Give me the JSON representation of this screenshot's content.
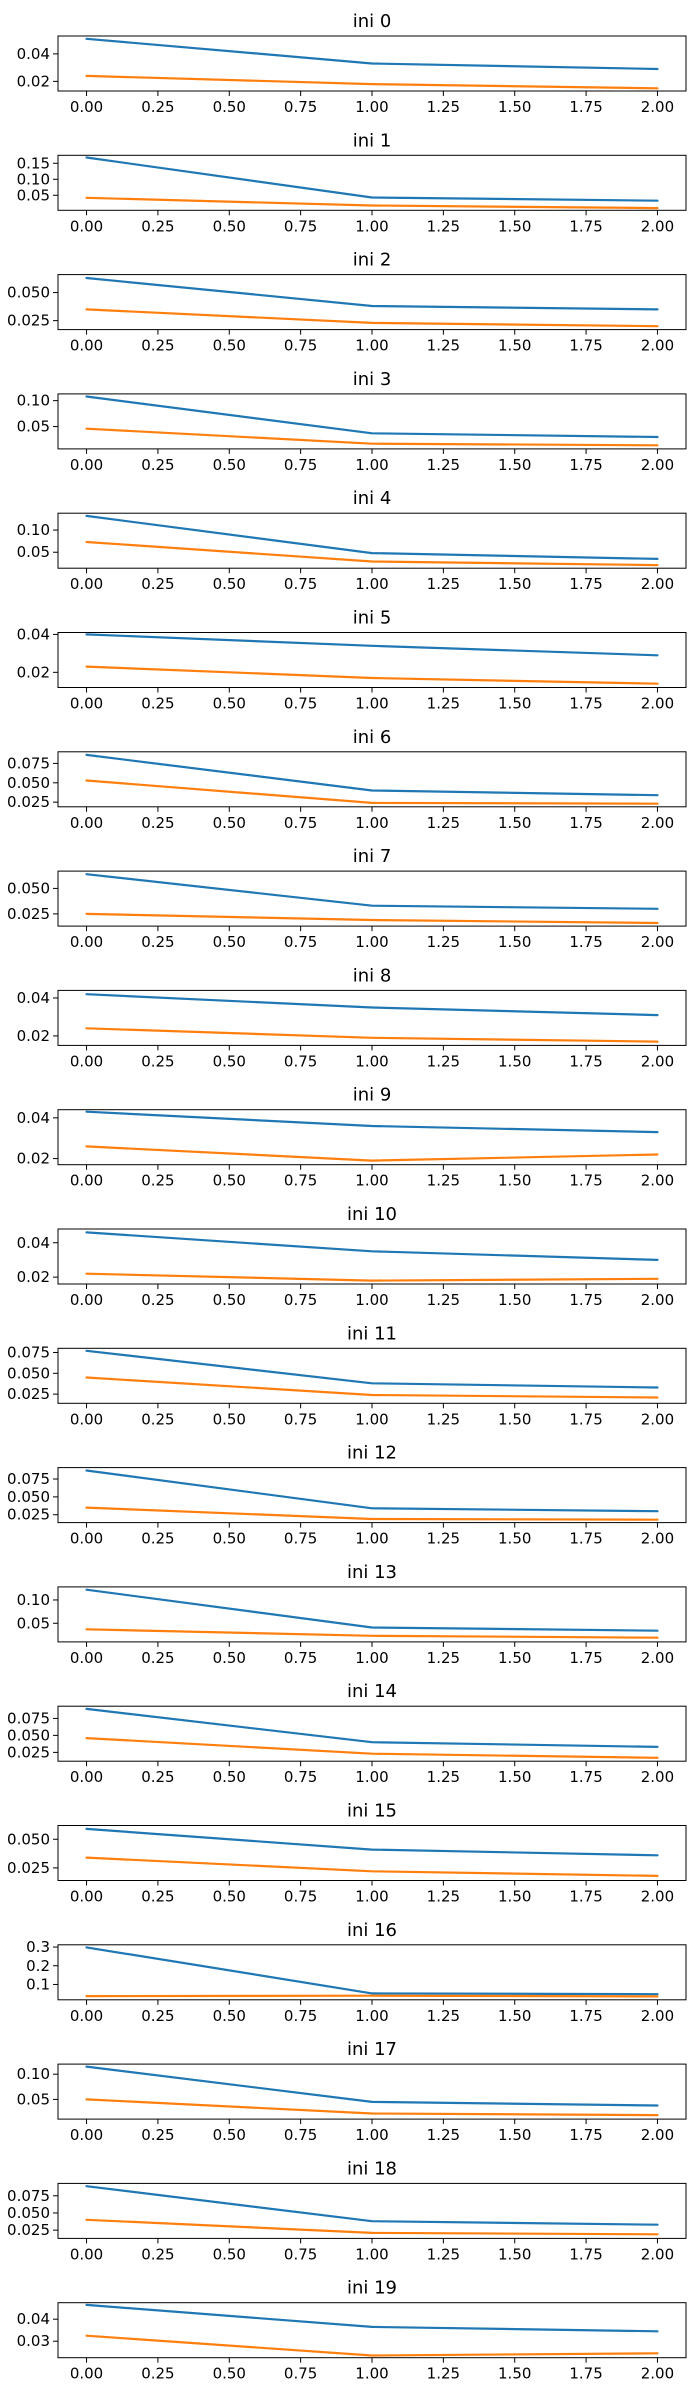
{
  "colors": {
    "series_a": "#1f77b4",
    "series_b": "#ff7f0e",
    "frame": "#000000"
  },
  "chart_data": [
    {
      "type": "line",
      "title": "ini 0",
      "x": [
        0,
        1,
        2
      ],
      "xlim": [
        -0.1,
        2.1
      ],
      "xticks": [
        "0.00",
        "0.25",
        "0.50",
        "0.75",
        "1.00",
        "1.25",
        "1.50",
        "1.75",
        "2.00"
      ],
      "ylim": [
        0.013,
        0.053
      ],
      "yticks": [
        "0.02",
        "0.04"
      ],
      "series": [
        {
          "values": [
            0.051,
            0.033,
            0.029
          ]
        },
        {
          "values": [
            0.024,
            0.018,
            0.015
          ]
        }
      ]
    },
    {
      "type": "line",
      "title": "ini 1",
      "x": [
        0,
        1,
        2
      ],
      "xlim": [
        -0.1,
        2.1
      ],
      "xticks": [
        "0.00",
        "0.25",
        "0.50",
        "0.75",
        "1.00",
        "1.25",
        "1.50",
        "1.75",
        "2.00"
      ],
      "ylim": [
        0.003,
        0.175
      ],
      "yticks": [
        "0.05",
        "0.10",
        "0.15"
      ],
      "series": [
        {
          "values": [
            0.168,
            0.043,
            0.033
          ]
        },
        {
          "values": [
            0.042,
            0.018,
            0.01
          ]
        }
      ]
    },
    {
      "type": "line",
      "title": "ini 2",
      "x": [
        0,
        1,
        2
      ],
      "xlim": [
        -0.1,
        2.1
      ],
      "xticks": [
        "0.00",
        "0.25",
        "0.50",
        "0.75",
        "1.00",
        "1.25",
        "1.50",
        "1.75",
        "2.00"
      ],
      "ylim": [
        0.017,
        0.066
      ],
      "yticks": [
        "0.025",
        "0.050"
      ],
      "series": [
        {
          "values": [
            0.063,
            0.038,
            0.035
          ]
        },
        {
          "values": [
            0.035,
            0.023,
            0.02
          ]
        }
      ]
    },
    {
      "type": "line",
      "title": "ini 3",
      "x": [
        0,
        1,
        2
      ],
      "xlim": [
        -0.1,
        2.1
      ],
      "xticks": [
        "0.00",
        "0.25",
        "0.50",
        "0.75",
        "1.00",
        "1.25",
        "1.50",
        "1.75",
        "2.00"
      ],
      "ylim": [
        0.007,
        0.113
      ],
      "yticks": [
        "0.05",
        "0.10"
      ],
      "series": [
        {
          "values": [
            0.108,
            0.037,
            0.03
          ]
        },
        {
          "values": [
            0.046,
            0.017,
            0.014
          ]
        }
      ]
    },
    {
      "type": "line",
      "title": "ini 4",
      "x": [
        0,
        1,
        2
      ],
      "xlim": [
        -0.1,
        2.1
      ],
      "xticks": [
        "0.00",
        "0.25",
        "0.50",
        "0.75",
        "1.00",
        "1.25",
        "1.50",
        "1.75",
        "2.00"
      ],
      "ylim": [
        0.014,
        0.138
      ],
      "yticks": [
        "0.05",
        "0.10"
      ],
      "series": [
        {
          "values": [
            0.132,
            0.048,
            0.035
          ]
        },
        {
          "values": [
            0.073,
            0.029,
            0.021
          ]
        }
      ]
    },
    {
      "type": "line",
      "title": "ini 5",
      "x": [
        0,
        1,
        2
      ],
      "xlim": [
        -0.1,
        2.1
      ],
      "xticks": [
        "0.00",
        "0.25",
        "0.50",
        "0.75",
        "1.00",
        "1.25",
        "1.50",
        "1.75",
        "2.00"
      ],
      "ylim": [
        0.012,
        0.041
      ],
      "yticks": [
        "0.02",
        "0.04"
      ],
      "series": [
        {
          "values": [
            0.04,
            0.034,
            0.029
          ]
        },
        {
          "values": [
            0.023,
            0.017,
            0.014
          ]
        }
      ]
    },
    {
      "type": "line",
      "title": "ini 6",
      "x": [
        0,
        1,
        2
      ],
      "xlim": [
        -0.1,
        2.1
      ],
      "xticks": [
        "0.00",
        "0.25",
        "0.50",
        "0.75",
        "1.00",
        "1.25",
        "1.50",
        "1.75",
        "2.00"
      ],
      "ylim": [
        0.019,
        0.09
      ],
      "yticks": [
        "0.025",
        "0.050",
        "0.075"
      ],
      "series": [
        {
          "values": [
            0.086,
            0.04,
            0.034
          ]
        },
        {
          "values": [
            0.053,
            0.024,
            0.023
          ]
        }
      ]
    },
    {
      "type": "line",
      "title": "ini 7",
      "x": [
        0,
        1,
        2
      ],
      "xlim": [
        -0.1,
        2.1
      ],
      "xticks": [
        "0.00",
        "0.25",
        "0.50",
        "0.75",
        "1.00",
        "1.25",
        "1.50",
        "1.75",
        "2.00"
      ],
      "ylim": [
        0.013,
        0.067
      ],
      "yticks": [
        "0.025",
        "0.050"
      ],
      "series": [
        {
          "values": [
            0.064,
            0.033,
            0.03
          ]
        },
        {
          "values": [
            0.025,
            0.019,
            0.016
          ]
        }
      ]
    },
    {
      "type": "line",
      "title": "ini 8",
      "x": [
        0,
        1,
        2
      ],
      "xlim": [
        -0.1,
        2.1
      ],
      "xticks": [
        "0.00",
        "0.25",
        "0.50",
        "0.75",
        "1.00",
        "1.25",
        "1.50",
        "1.75",
        "2.00"
      ],
      "ylim": [
        0.015,
        0.044
      ],
      "yticks": [
        "0.02",
        "0.04"
      ],
      "series": [
        {
          "values": [
            0.042,
            0.035,
            0.031
          ]
        },
        {
          "values": [
            0.024,
            0.019,
            0.017
          ]
        }
      ]
    },
    {
      "type": "line",
      "title": "ini 9",
      "x": [
        0,
        1,
        2
      ],
      "xlim": [
        -0.1,
        2.1
      ],
      "xticks": [
        "0.00",
        "0.25",
        "0.50",
        "0.75",
        "1.00",
        "1.25",
        "1.50",
        "1.75",
        "2.00"
      ],
      "ylim": [
        0.017,
        0.044
      ],
      "yticks": [
        "0.02",
        "0.04"
      ],
      "series": [
        {
          "values": [
            0.043,
            0.036,
            0.033
          ]
        },
        {
          "values": [
            0.026,
            0.019,
            0.022
          ]
        }
      ]
    },
    {
      "type": "line",
      "title": "ini 10",
      "x": [
        0,
        1,
        2
      ],
      "xlim": [
        -0.1,
        2.1
      ],
      "xticks": [
        "0.00",
        "0.25",
        "0.50",
        "0.75",
        "1.00",
        "1.25",
        "1.50",
        "1.75",
        "2.00"
      ],
      "ylim": [
        0.016,
        0.048
      ],
      "yticks": [
        "0.02",
        "0.04"
      ],
      "series": [
        {
          "values": [
            0.046,
            0.035,
            0.03
          ]
        },
        {
          "values": [
            0.022,
            0.018,
            0.019
          ]
        }
      ]
    },
    {
      "type": "line",
      "title": "ini 11",
      "x": [
        0,
        1,
        2
      ],
      "xlim": [
        -0.1,
        2.1
      ],
      "xticks": [
        "0.00",
        "0.25",
        "0.50",
        "0.75",
        "1.00",
        "1.25",
        "1.50",
        "1.75",
        "2.00"
      ],
      "ylim": [
        0.014,
        0.08
      ],
      "yticks": [
        "0.025",
        "0.050",
        "0.075"
      ],
      "series": [
        {
          "values": [
            0.077,
            0.038,
            0.033
          ]
        },
        {
          "values": [
            0.045,
            0.024,
            0.021
          ]
        }
      ]
    },
    {
      "type": "line",
      "title": "ini 12",
      "x": [
        0,
        1,
        2
      ],
      "xlim": [
        -0.1,
        2.1
      ],
      "xticks": [
        "0.00",
        "0.25",
        "0.50",
        "0.75",
        "1.00",
        "1.25",
        "1.50",
        "1.75",
        "2.00"
      ],
      "ylim": [
        0.014,
        0.091
      ],
      "yticks": [
        "0.025",
        "0.050",
        "0.075"
      ],
      "series": [
        {
          "values": [
            0.087,
            0.034,
            0.03
          ]
        },
        {
          "values": [
            0.035,
            0.019,
            0.018
          ]
        }
      ]
    },
    {
      "type": "line",
      "title": "ini 13",
      "x": [
        0,
        1,
        2
      ],
      "xlim": [
        -0.1,
        2.1
      ],
      "xticks": [
        "0.00",
        "0.25",
        "0.50",
        "0.75",
        "1.00",
        "1.25",
        "1.50",
        "1.75",
        "2.00"
      ],
      "ylim": [
        0.01,
        0.128
      ],
      "yticks": [
        "0.05",
        "0.10"
      ],
      "series": [
        {
          "values": [
            0.122,
            0.041,
            0.034
          ]
        },
        {
          "values": [
            0.037,
            0.023,
            0.019
          ]
        }
      ]
    },
    {
      "type": "line",
      "title": "ini 14",
      "x": [
        0,
        1,
        2
      ],
      "xlim": [
        -0.1,
        2.1
      ],
      "xticks": [
        "0.00",
        "0.25",
        "0.50",
        "0.75",
        "1.00",
        "1.25",
        "1.50",
        "1.75",
        "2.00"
      ],
      "ylim": [
        0.012,
        0.093
      ],
      "yticks": [
        "0.025",
        "0.050",
        "0.075"
      ],
      "series": [
        {
          "values": [
            0.089,
            0.04,
            0.033
          ]
        },
        {
          "values": [
            0.046,
            0.023,
            0.017
          ]
        }
      ]
    },
    {
      "type": "line",
      "title": "ini 15",
      "x": [
        0,
        1,
        2
      ],
      "xlim": [
        -0.1,
        2.1
      ],
      "xticks": [
        "0.00",
        "0.25",
        "0.50",
        "0.75",
        "1.00",
        "1.25",
        "1.50",
        "1.75",
        "2.00"
      ],
      "ylim": [
        0.014,
        0.062
      ],
      "yticks": [
        "0.025",
        "0.050"
      ],
      "series": [
        {
          "values": [
            0.059,
            0.041,
            0.036
          ]
        },
        {
          "values": [
            0.034,
            0.022,
            0.018
          ]
        }
      ]
    },
    {
      "type": "line",
      "title": "ini 16",
      "x": [
        0,
        1,
        2
      ],
      "xlim": [
        -0.1,
        2.1
      ],
      "xticks": [
        "0.00",
        "0.25",
        "0.50",
        "0.75",
        "1.00",
        "1.25",
        "1.50",
        "1.75",
        "2.00"
      ],
      "ylim": [
        0.018,
        0.312
      ],
      "yticks": [
        "0.1",
        "0.2",
        "0.3"
      ],
      "series": [
        {
          "values": [
            0.298,
            0.052,
            0.048
          ]
        },
        {
          "values": [
            0.038,
            0.04,
            0.036
          ]
        }
      ]
    },
    {
      "type": "line",
      "title": "ini 17",
      "x": [
        0,
        1,
        2
      ],
      "xlim": [
        -0.1,
        2.1
      ],
      "xticks": [
        "0.00",
        "0.25",
        "0.50",
        "0.75",
        "1.00",
        "1.25",
        "1.50",
        "1.75",
        "2.00"
      ],
      "ylim": [
        0.011,
        0.12
      ],
      "yticks": [
        "0.05",
        "0.10"
      ],
      "series": [
        {
          "values": [
            0.115,
            0.045,
            0.038
          ]
        },
        {
          "values": [
            0.05,
            0.022,
            0.019
          ]
        }
      ]
    },
    {
      "type": "line",
      "title": "ini 18",
      "x": [
        0,
        1,
        2
      ],
      "xlim": [
        -0.1,
        2.1
      ],
      "xticks": [
        "0.00",
        "0.25",
        "0.50",
        "0.75",
        "1.00",
        "1.25",
        "1.50",
        "1.75",
        "2.00"
      ],
      "ylim": [
        0.013,
        0.093
      ],
      "yticks": [
        "0.025",
        "0.050",
        "0.075"
      ],
      "series": [
        {
          "values": [
            0.089,
            0.038,
            0.033
          ]
        },
        {
          "values": [
            0.04,
            0.021,
            0.019
          ]
        }
      ]
    },
    {
      "type": "line",
      "title": "ini 19",
      "x": [
        0,
        1,
        2
      ],
      "xlim": [
        -0.1,
        2.1
      ],
      "xticks": [
        "0.00",
        "0.25",
        "0.50",
        "0.75",
        "1.00",
        "1.25",
        "1.50",
        "1.75",
        "2.00"
      ],
      "ylim": [
        0.0225,
        0.0475
      ],
      "yticks": [
        "0.03",
        "0.04"
      ],
      "series": [
        {
          "values": [
            0.0465,
            0.0365,
            0.0345
          ]
        },
        {
          "values": [
            0.0325,
            0.0235,
            0.0245
          ]
        }
      ]
    }
  ]
}
